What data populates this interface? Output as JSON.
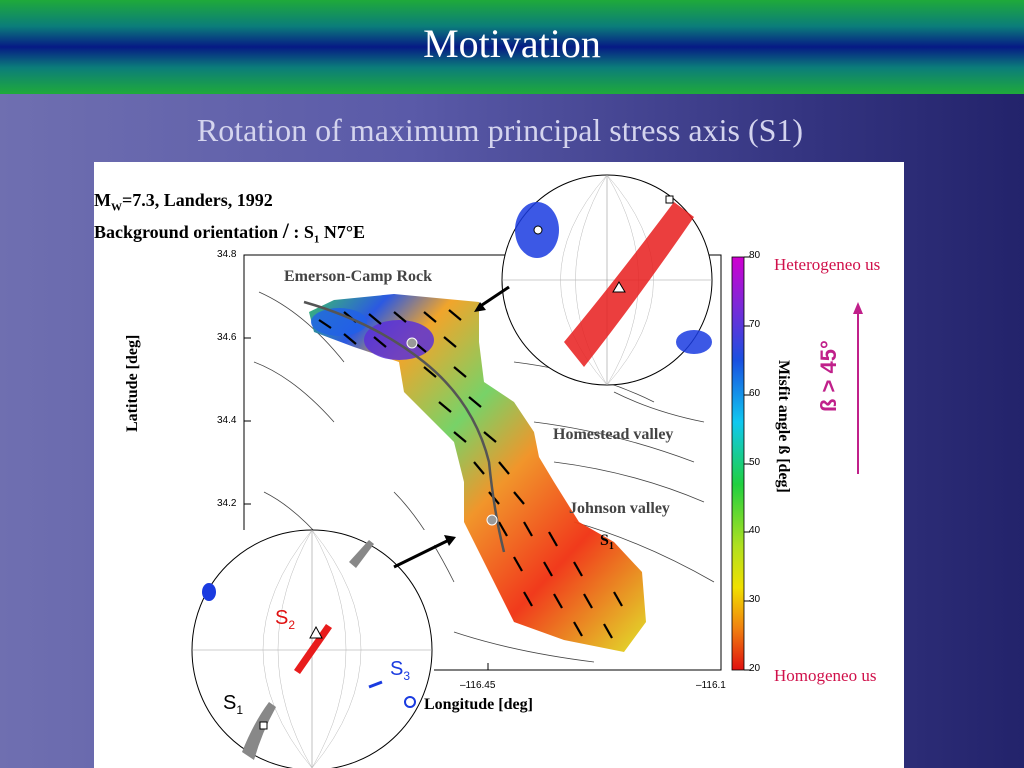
{
  "slide": {
    "title": "Motivation",
    "subtitle": "Rotation of maximum principal stress axis (S1)"
  },
  "figure": {
    "event_line_main": "M",
    "event_line_sub": "W",
    "event_line_rest": "=7.3, Landers, 1992",
    "background_label": "Background orientation",
    "stress_label_colon": ": S",
    "stress_label_sub": "1",
    "stress_label_rest": " N7°E",
    "places": {
      "emerson": "Emerson-Camp Rock",
      "homestead": "Homestead valley",
      "johnson": "Johnson valley"
    },
    "s1_main": "S",
    "s1_sub": "1",
    "axes": {
      "ylabel": "Latitude [deg]",
      "xlabel": "Longitude [deg]",
      "yticks": [
        "34.8",
        "34.6",
        "34.4",
        "34.2"
      ],
      "xticks": [
        "–116.45",
        "–116.1"
      ]
    },
    "colorbar": {
      "label": "Misfit angle ß [deg]",
      "ticks": [
        "80",
        "70",
        "60",
        "50",
        "40",
        "30",
        "20"
      ]
    },
    "top_label": "Heterogeneo us",
    "bottom_label": "Homogeneo us",
    "beta_label": "ß > 45°",
    "stereonet_labels": {
      "s2_main": "S",
      "s2_sub": "2",
      "s3_main": "S",
      "s3_sub": "3",
      "s1_main": "S",
      "s1_sub": "1"
    },
    "colors": {
      "accent": "#d0104a",
      "beta_arrow": "#c0208a"
    }
  }
}
